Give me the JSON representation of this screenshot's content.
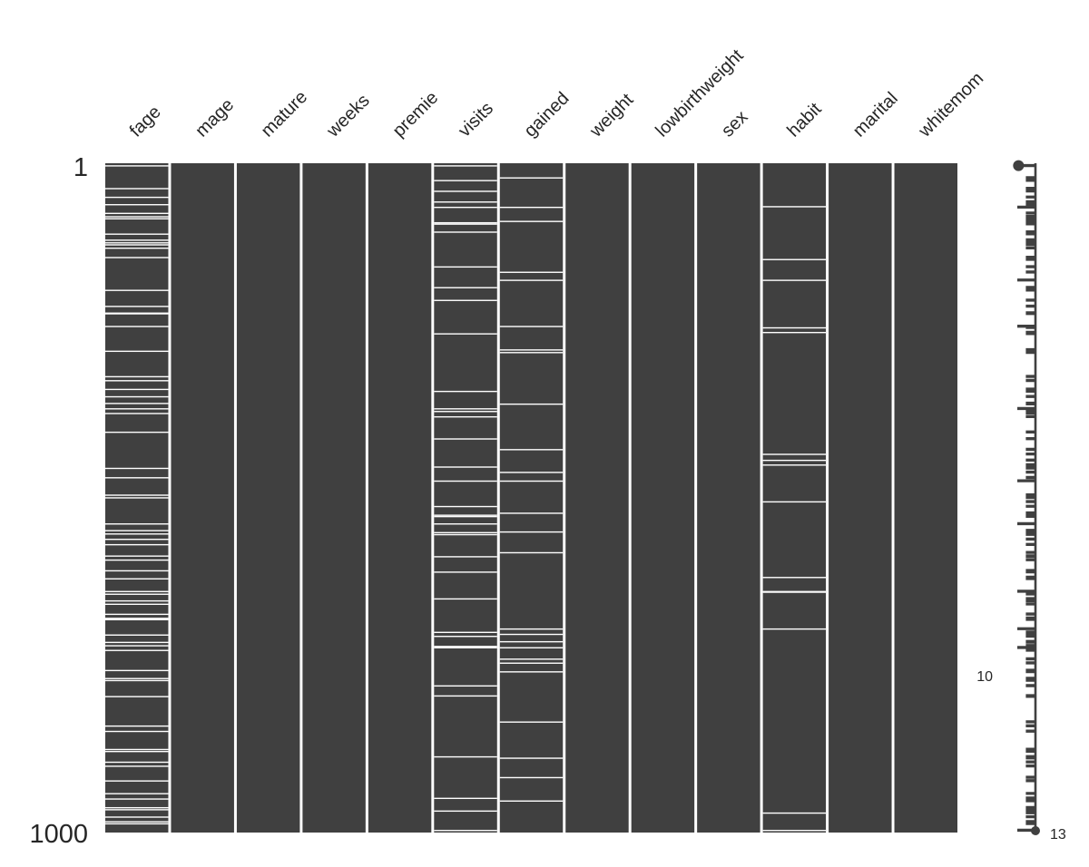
{
  "chart_data": {
    "type": "heatmap",
    "title": "",
    "n_rows": 1000,
    "y_tick_labels": [
      "1",
      "1000"
    ],
    "columns": [
      "fage",
      "mage",
      "mature",
      "weeks",
      "premie",
      "visits",
      "gained",
      "weight",
      "lowbirthweight",
      "sex",
      "habit",
      "marital",
      "whitemom"
    ],
    "missing_rows": {
      "fage": [
        4,
        38,
        51,
        62,
        75,
        80,
        83,
        106,
        115,
        119,
        122,
        127,
        141,
        190,
        214,
        224,
        225,
        244,
        281,
        319,
        325,
        338,
        349,
        359,
        367,
        374,
        402,
        456,
        470,
        496,
        500,
        539,
        549,
        554,
        562,
        570,
        587,
        593,
        609,
        621,
        640,
        644,
        654,
        659,
        674,
        680,
        682,
        705,
        716,
        721,
        728,
        758,
        770,
        773,
        797,
        841,
        849,
        876,
        879,
        895,
        901,
        923,
        942,
        950,
        963,
        966,
        977,
        984,
        987
      ],
      "mage": [],
      "mature": [],
      "weeks": [],
      "premie": [],
      "visits": [
        4,
        26,
        42,
        58,
        66,
        89,
        91,
        103,
        155,
        186,
        205,
        255,
        341,
        367,
        371,
        379,
        412,
        454,
        475,
        513,
        526,
        528,
        539,
        552,
        555,
        588,
        611,
        651,
        701,
        707,
        722,
        724,
        781,
        796,
        887,
        949,
        968,
        997
      ],
      "gained": [
        22,
        66,
        87,
        163,
        175,
        244,
        279,
        283,
        360,
        428,
        462,
        475,
        523,
        551,
        582,
        696,
        704,
        715,
        724,
        741,
        747,
        760,
        835,
        889,
        918,
        953
      ],
      "weight": [],
      "lowbirthweight": [],
      "sex": [],
      "habit": [
        65,
        144,
        175,
        246,
        253,
        435,
        444,
        451,
        506,
        619,
        640,
        641,
        696,
        971,
        997
      ],
      "marital": [],
      "whitemom": []
    },
    "sparkline": {
      "min_label": "10",
      "max_label": "13",
      "min_value": 10,
      "max_value": 13
    },
    "colors": {
      "present": "#404040",
      "missing": "#ffffff",
      "background": "#ffffff"
    },
    "grid": false,
    "legend": "none"
  }
}
